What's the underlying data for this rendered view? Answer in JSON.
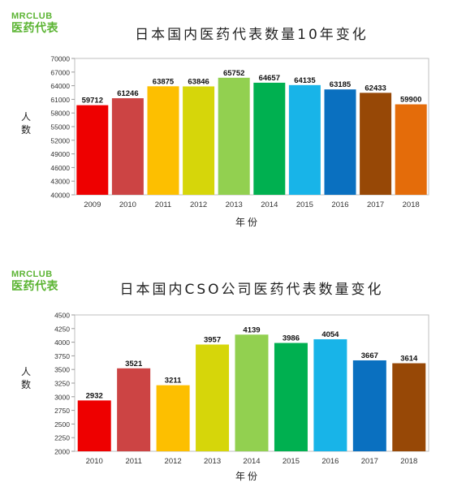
{
  "logo": {
    "top": "MRCLUB",
    "bottom": "医药代表"
  },
  "chart_data": [
    {
      "type": "bar",
      "title": "日本国内医药代表数量10年变化",
      "xlabel": "年份",
      "ylabel": "人数",
      "categories": [
        "2009",
        "2010",
        "2011",
        "2012",
        "2013",
        "2014",
        "2015",
        "2016",
        "2017",
        "2018"
      ],
      "values": [
        59712,
        61246,
        63875,
        63846,
        65752,
        64657,
        64135,
        63185,
        62433,
        59900
      ],
      "colors": [
        "#ee0000",
        "#cc4444",
        "#fdbf00",
        "#d6d60a",
        "#92d050",
        "#00b050",
        "#18b4e8",
        "#0a70c0",
        "#974806",
        "#e46c0a"
      ],
      "ylim": [
        40000,
        70000
      ],
      "yticks": [
        "40000",
        "43000",
        "46000",
        "49000",
        "52000",
        "55000",
        "58000",
        "61000",
        "64000",
        "67000",
        "70000"
      ],
      "grid": false,
      "legend": "none"
    },
    {
      "type": "bar",
      "title": "日本国内CSO公司医药代表数量变化",
      "xlabel": "年份",
      "ylabel": "人数",
      "categories": [
        "2010",
        "2011",
        "2012",
        "2013",
        "2014",
        "2015",
        "2016",
        "2017",
        "2018"
      ],
      "values": [
        2932,
        3521,
        3211,
        3957,
        4139,
        3986,
        4054,
        3667,
        3614
      ],
      "colors": [
        "#ee0000",
        "#cc4444",
        "#fdbf00",
        "#d6d60a",
        "#92d050",
        "#00b050",
        "#18b4e8",
        "#0a70c0",
        "#974806"
      ],
      "ylim": [
        2000,
        4500
      ],
      "yticks": [
        "2000",
        "2250",
        "2500",
        "2750",
        "3000",
        "3250",
        "3500",
        "3750",
        "4000",
        "4250",
        "4500"
      ],
      "grid": false,
      "legend": "none"
    }
  ]
}
